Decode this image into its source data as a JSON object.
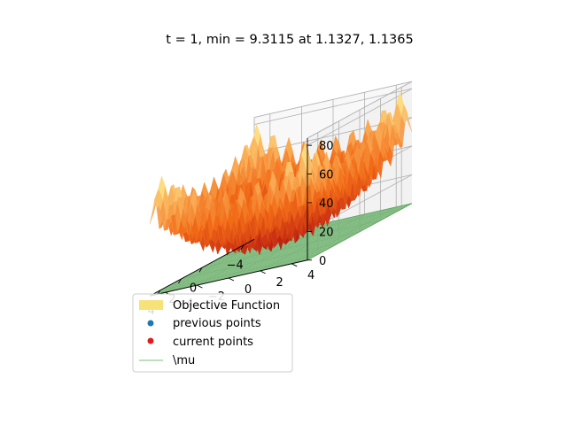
{
  "chart_data": {
    "type": "surface3d",
    "title": "t = 1, min = 9.3115 at 1.1327, 1.1365",
    "xlabel": "",
    "ylabel": "",
    "zlabel": "",
    "xlim": [
      -5,
      5
    ],
    "ylim": [
      -5,
      5
    ],
    "zlim": [
      0,
      85
    ],
    "x_ticks": [
      -4,
      -2,
      0,
      2,
      4
    ],
    "y_ticks": [
      -4,
      -2,
      0,
      2,
      4
    ],
    "z_ticks": [
      0,
      20,
      40,
      60,
      80
    ],
    "x_tick_labels_visible": [
      "−4",
      "0",
      "2",
      "4"
    ],
    "y_tick_labels": [
      "−4",
      "−2",
      "0",
      "2",
      "4"
    ],
    "z_tick_labels": [
      "0",
      "20",
      "40",
      "60",
      "80"
    ],
    "grid": true,
    "legend_position": "lower-left",
    "legend": [
      {
        "label": "Objective Function",
        "kind": "patch",
        "color": "#f7e27a"
      },
      {
        "label": "previous points",
        "kind": "marker",
        "color": "#1f77b4"
      },
      {
        "label": "current points",
        "kind": "marker",
        "color": "#e31a1c"
      },
      {
        "label": "\\mu",
        "kind": "line",
        "color": "#a6d5a6"
      }
    ],
    "objective_surface": {
      "function": "Rastrigin",
      "domain": [
        -5,
        5
      ],
      "colormap": "YlOrRd (reversed)",
      "max": 80
    },
    "mu_plane": {
      "z": 0,
      "color": "#8cc48c"
    },
    "minimum": {
      "value": 9.3115,
      "x": 1.1327,
      "y": 1.1365
    }
  },
  "colors": {
    "surface_low": "#b30f0f",
    "surface_mid": "#f26b18",
    "surface_high": "#fff59a",
    "plane_fill": "#98cf98",
    "plane_grid": "#5fa55f",
    "axis_grid": "#b0b0b0"
  }
}
